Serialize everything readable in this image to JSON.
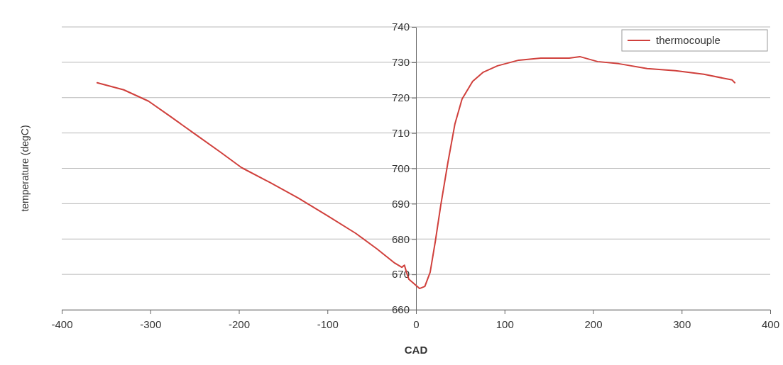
{
  "chart_data": {
    "type": "line",
    "xlabel": "CAD",
    "ylabel": "temperature (degC)",
    "xlim": [
      -400,
      400
    ],
    "xticks": [
      -400,
      -300,
      -200,
      -100,
      0,
      100,
      200,
      300,
      400
    ],
    "ylim": [
      660,
      740
    ],
    "yticks": [
      660,
      670,
      680,
      690,
      700,
      710,
      720,
      730,
      740
    ],
    "grid": "y",
    "legend": "top right",
    "marker": "none",
    "line_style": "solid",
    "series": [
      {
        "name": "thermocouple",
        "color": "#d0403c",
        "x": [
          -360,
          -330,
          -302,
          -277,
          -249,
          -221,
          -197,
          -165,
          -133,
          -100,
          -68,
          -44,
          -24,
          -16,
          -14,
          -13,
          -11,
          -8,
          4,
          10,
          16,
          22,
          28,
          36,
          44,
          52,
          64,
          76,
          92,
          116,
          141,
          173,
          185,
          205,
          229,
          261,
          293,
          325,
          357,
          360
        ],
        "values": [
          724.2,
          722.2,
          719,
          714.6,
          709.6,
          704.6,
          700.2,
          696,
          691.6,
          686.6,
          681.6,
          677.2,
          673.2,
          672,
          672.4,
          672.6,
          670.8,
          668.6,
          666,
          666.6,
          670.6,
          679.6,
          689.6,
          701.6,
          712.6,
          719.6,
          724.6,
          727.2,
          729,
          730.6,
          731.2,
          731.2,
          731.6,
          730.2,
          729.6,
          728.2,
          727.6,
          726.6,
          725,
          724.2
        ]
      }
    ]
  }
}
